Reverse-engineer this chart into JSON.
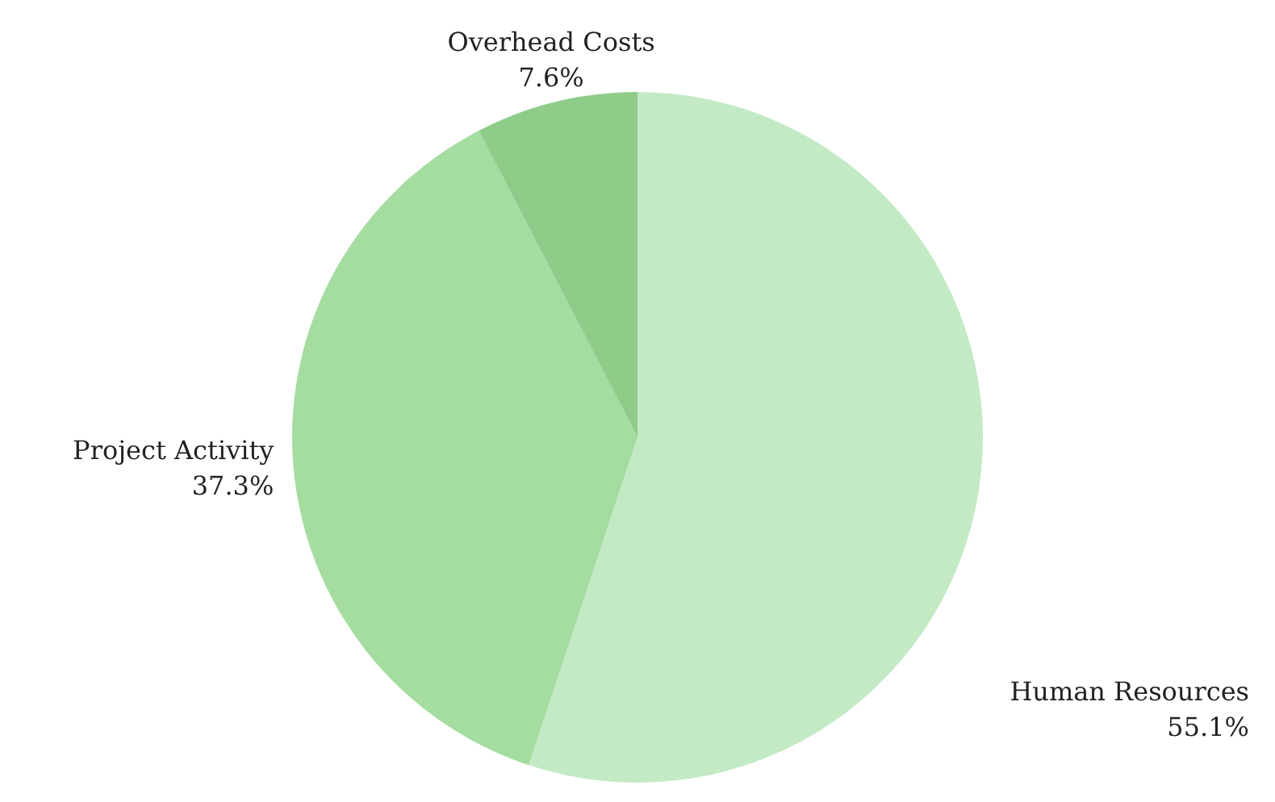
{
  "chart_data": {
    "type": "pie",
    "categories": [
      "Human Resources",
      "Project Activity",
      "Overhead Costs"
    ],
    "values": [
      55.1,
      37.3,
      7.6
    ],
    "value_labels": [
      "55.1%",
      "37.3%",
      "7.6%"
    ],
    "colors": [
      "#c3eac4",
      "#a5dca0",
      "#8fcc8a"
    ],
    "legend": false
  }
}
